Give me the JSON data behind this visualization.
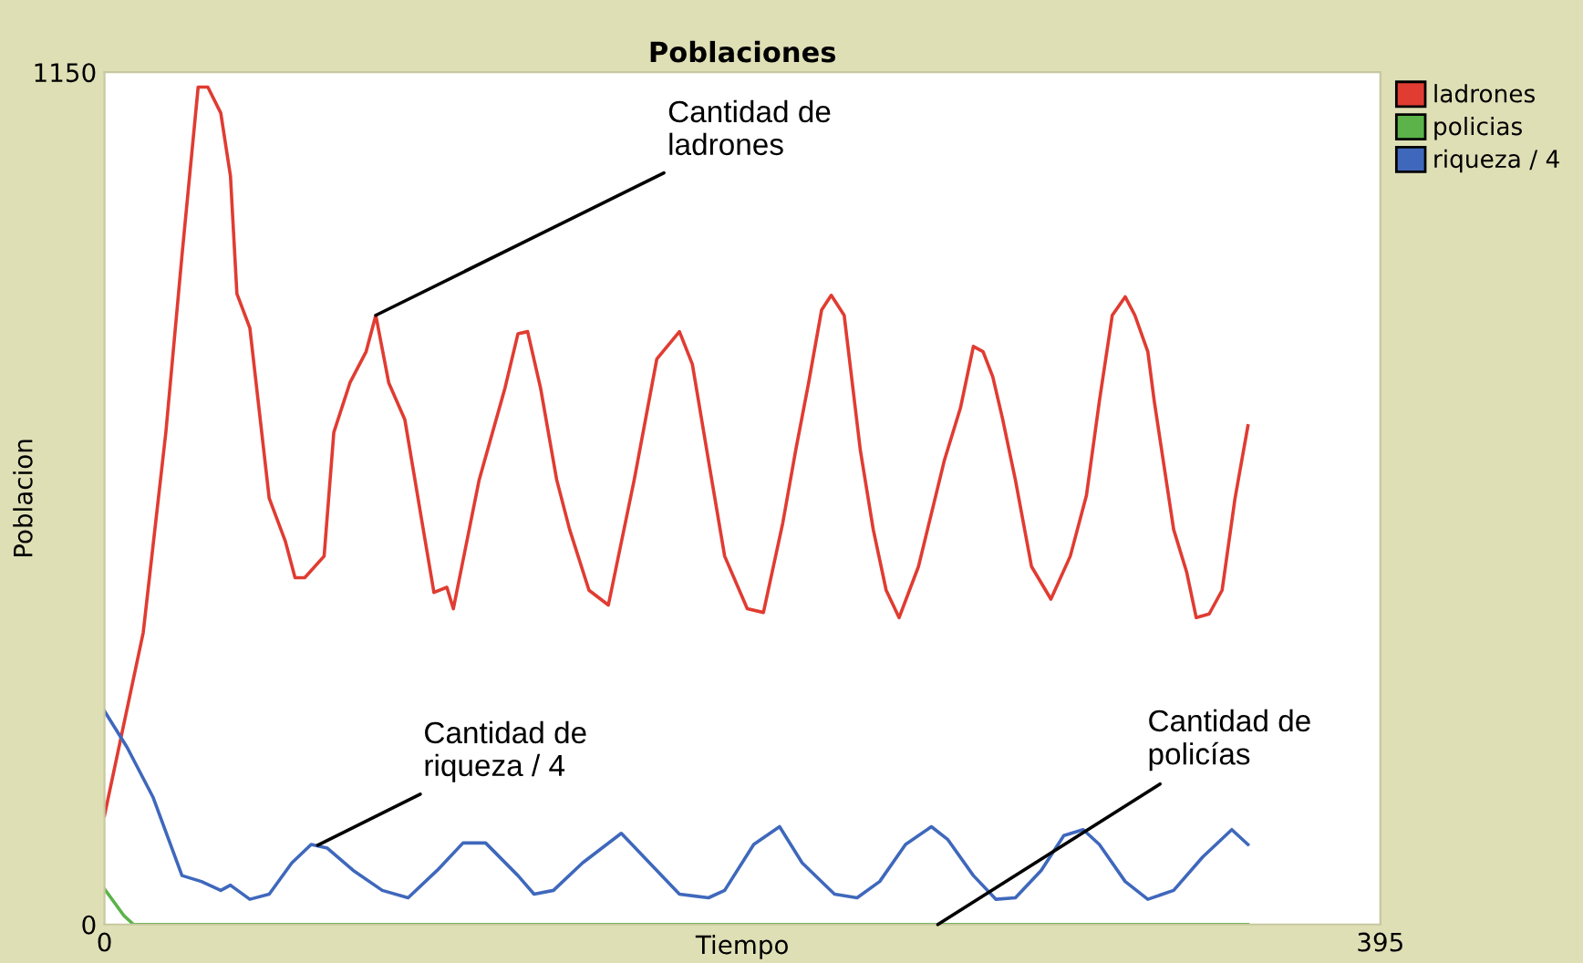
{
  "chart_data": {
    "type": "line",
    "title": "Poblaciones",
    "xlabel": "Tiempo",
    "ylabel": "Poblacion",
    "xlim": [
      0,
      395
    ],
    "ylim": [
      0,
      1150
    ],
    "xticks": [
      0,
      395
    ],
    "yticks": [
      0,
      1150
    ],
    "grid": false,
    "legend": "top right",
    "series": [
      {
        "name": "ladrones",
        "color": "#e03c32",
        "x": [
          0,
          12,
          19,
          24,
          29,
          32,
          36,
          39,
          41,
          45,
          51,
          56,
          59,
          62,
          68,
          71,
          76,
          81,
          84,
          88,
          93,
          98,
          102,
          106,
          108,
          116,
          124,
          128,
          131,
          135,
          140,
          144,
          150,
          156,
          164,
          171,
          178,
          182,
          188,
          192,
          199,
          204,
          210,
          214,
          218,
          222,
          225,
          229,
          234,
          238,
          242,
          246,
          252,
          260,
          265,
          269,
          272,
          275,
          278,
          282,
          287,
          293,
          299,
          304,
          308,
          312,
          316,
          319,
          323,
          325,
          331,
          335,
          338,
          342,
          346,
          350,
          354
        ],
        "values": [
          147,
          394,
          664,
          903,
          1130,
          1130,
          1095,
          1010,
          851,
          805,
          575,
          517,
          468,
          468,
          497,
          664,
          731,
          773,
          822,
          731,
          681,
          551,
          448,
          455,
          426,
          600,
          724,
          797,
          800,
          724,
          600,
          533,
          451,
          431,
          600,
          763,
          800,
          756,
          600,
          497,
          426,
          421,
          542,
          640,
          731,
          829,
          849,
          822,
          640,
          533,
          451,
          414,
          483,
          626,
          697,
          780,
          773,
          739,
          683,
          600,
          483,
          439,
          497,
          579,
          706,
          822,
          847,
          822,
          773,
          706,
          533,
          476,
          414,
          419,
          451,
          575,
          673
        ]
      },
      {
        "name": "policias",
        "color": "#5bb349",
        "x": [
          0,
          6,
          9,
          354
        ],
        "values": [
          48,
          12,
          0,
          0
        ]
      },
      {
        "name": "riqueza / 4",
        "color": "#3f68bc",
        "x": [
          0,
          7,
          15,
          24,
          30,
          36,
          39,
          45,
          51,
          58,
          64,
          69,
          77,
          86,
          94,
          103,
          111,
          118,
          128,
          133,
          139,
          148,
          160,
          167,
          178,
          187,
          192,
          201,
          209,
          216,
          226,
          233,
          240,
          248,
          256,
          261,
          269,
          276,
          282,
          290,
          297,
          303,
          308,
          316,
          323,
          331,
          340,
          349,
          354
        ],
        "values": [
          288,
          239,
          172,
          66,
          58,
          46,
          53,
          34,
          41,
          83,
          108,
          103,
          73,
          46,
          36,
          73,
          110,
          110,
          66,
          41,
          46,
          83,
          123,
          91,
          41,
          36,
          46,
          108,
          132,
          83,
          41,
          36,
          58,
          108,
          132,
          115,
          66,
          34,
          36,
          73,
          120,
          128,
          108,
          58,
          34,
          46,
          91,
          128,
          108
        ]
      }
    ],
    "annotations": [
      {
        "text": "Cantidad de\nladrones",
        "x": 84,
        "y": 822
      },
      {
        "text": "Cantidad de\nriqueza / 4",
        "x": 66,
        "y": 107
      },
      {
        "text": "Cantidad de\npolicías",
        "x": 258,
        "y": 0
      }
    ]
  }
}
